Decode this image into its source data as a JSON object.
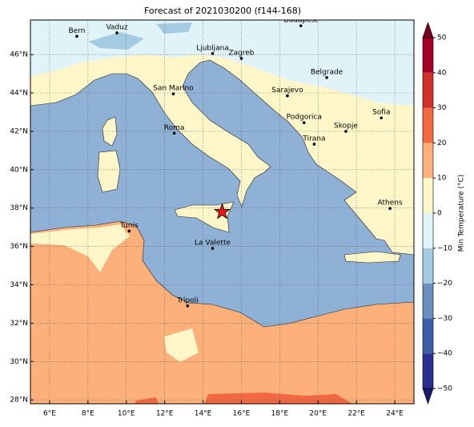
{
  "title": "Forecast of 2021030200 (f144-168)",
  "map": {
    "lonlim": [
      5,
      25
    ],
    "latlim": [
      27.8,
      47.8
    ],
    "lonticks": [
      {
        "value": 6,
        "label": "6°E"
      },
      {
        "value": 8,
        "label": "8°E"
      },
      {
        "value": 10,
        "label": "10°E"
      },
      {
        "value": 12,
        "label": "12°E"
      },
      {
        "value": 14,
        "label": "14°E"
      },
      {
        "value": 16,
        "label": "16°E"
      },
      {
        "value": 18,
        "label": "18°E"
      },
      {
        "value": 20,
        "label": "20°E"
      },
      {
        "value": 22,
        "label": "22°E"
      },
      {
        "value": 24,
        "label": "24°E"
      }
    ],
    "latticks": [
      {
        "value": 28,
        "label": "28°N"
      },
      {
        "value": 30,
        "label": "30°N"
      },
      {
        "value": 32,
        "label": "32°N"
      },
      {
        "value": 34,
        "label": "34°N"
      },
      {
        "value": 36,
        "label": "36°N"
      },
      {
        "value": 38,
        "label": "38°N"
      },
      {
        "value": 40,
        "label": "40°N"
      },
      {
        "value": 42,
        "label": "42°N"
      },
      {
        "value": 44,
        "label": "44°N"
      },
      {
        "value": 46,
        "label": "46°N"
      }
    ],
    "grid": true
  },
  "cities": [
    {
      "name": "Bern",
      "lon": 7.42,
      "lat": 46.95
    },
    {
      "name": "Vaduz",
      "lon": 9.51,
      "lat": 47.13
    },
    {
      "name": "Budapest",
      "lon": 19.1,
      "lat": 47.5
    },
    {
      "name": "Ljubljana",
      "lon": 14.5,
      "lat": 46.05
    },
    {
      "name": "Zagreb",
      "lon": 16.0,
      "lat": 45.8
    },
    {
      "name": "Belgrade",
      "lon": 20.45,
      "lat": 44.8
    },
    {
      "name": "San Marino",
      "lon": 12.45,
      "lat": 43.95
    },
    {
      "name": "Sarajevo",
      "lon": 18.4,
      "lat": 43.85
    },
    {
      "name": "Sofia",
      "lon": 23.3,
      "lat": 42.7
    },
    {
      "name": "Roma",
      "lon": 12.5,
      "lat": 41.9
    },
    {
      "name": "Podgorica",
      "lon": 19.27,
      "lat": 42.45
    },
    {
      "name": "Skopje",
      "lon": 21.45,
      "lat": 42.0
    },
    {
      "name": "Tirana",
      "lon": 19.8,
      "lat": 41.33
    },
    {
      "name": "Athens",
      "lon": 23.75,
      "lat": 37.98
    },
    {
      "name": "Tunis",
      "lon": 10.15,
      "lat": 36.8
    },
    {
      "name": "La Valette",
      "lon": 14.5,
      "lat": 35.9
    },
    {
      "name": "Tripoli",
      "lon": 13.2,
      "lat": 32.9
    }
  ],
  "marker": {
    "lon": 15.0,
    "lat": 37.8,
    "color": "#e41a1c"
  },
  "colorbar": {
    "label": "Min Temperature (°C)",
    "ticks": [
      {
        "value": -50,
        "label": "−50"
      },
      {
        "value": -40,
        "label": "−40"
      },
      {
        "value": -30,
        "label": "−30"
      },
      {
        "value": -20,
        "label": "−20"
      },
      {
        "value": -10,
        "label": "−10"
      },
      0,
      10,
      20,
      30,
      40,
      50
    ],
    "colors": [
      "#2b2f8f",
      "#3f5ea8",
      "#6a90c2",
      "#a3cbe2",
      "#e0f3f8",
      "#fff6ca",
      "#fdb07a",
      "#f26841",
      "#d0312a",
      "#a50026"
    ],
    "under": "#1a1a6e",
    "over": "#7a0020"
  }
}
